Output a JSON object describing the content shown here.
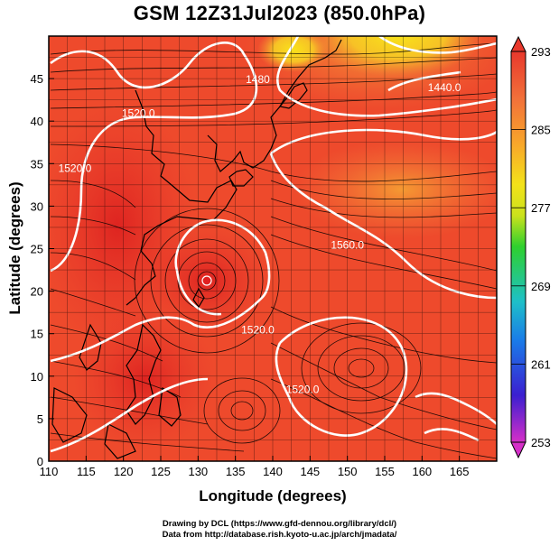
{
  "title": "GSM 12Z31Jul2023 (850.0hPa)",
  "x_axis": {
    "label": "Longitude (degrees)",
    "ticks": [
      "110",
      "115",
      "120",
      "125",
      "130",
      "135",
      "140",
      "145",
      "150",
      "155",
      "160",
      "165"
    ],
    "range": [
      110,
      170
    ]
  },
  "y_axis": {
    "label": "Latitude  (degrees)",
    "ticks": [
      "0",
      "5",
      "10",
      "15",
      "20",
      "25",
      "30",
      "35",
      "40",
      "45"
    ],
    "range": [
      0,
      50
    ]
  },
  "colorbar": {
    "ticks": [
      "253",
      "261",
      "269",
      "277",
      "285",
      "293"
    ],
    "range": [
      253,
      293
    ],
    "colors": [
      "#d52fc8",
      "#3b1fd0",
      "#1a7be8",
      "#1ec0c8",
      "#2ed02e",
      "#cbe21c",
      "#f3e21a",
      "#f8a82a",
      "#f2703a",
      "#e8382c"
    ]
  },
  "field": {
    "dominant_color": "#ee4a2c",
    "warm_core_color": "#e02a22",
    "northern_yellow": "#f6d224"
  },
  "contour_labels": [
    {
      "text": "1440.0",
      "lon": 163,
      "lat": 43.5
    },
    {
      "text": "1480",
      "lon": 138,
      "lat": 44.5
    },
    {
      "text": "1520.0",
      "lon": 122,
      "lat": 40.5
    },
    {
      "text": "1520.0",
      "lon": 113.5,
      "lat": 34
    },
    {
      "text": "1560.0",
      "lon": 150,
      "lat": 25
    },
    {
      "text": "1520.0",
      "lon": 138,
      "lat": 15
    },
    {
      "text": "1520.0",
      "lon": 144,
      "lat": 8
    }
  ],
  "credits": {
    "line1": "Drawing by DCL (https://www.gfd-dennou.org/library/dcl/)",
    "line2": "Data from http://database.rish.kyoto-u.ac.jp/arch/jmadata/"
  }
}
